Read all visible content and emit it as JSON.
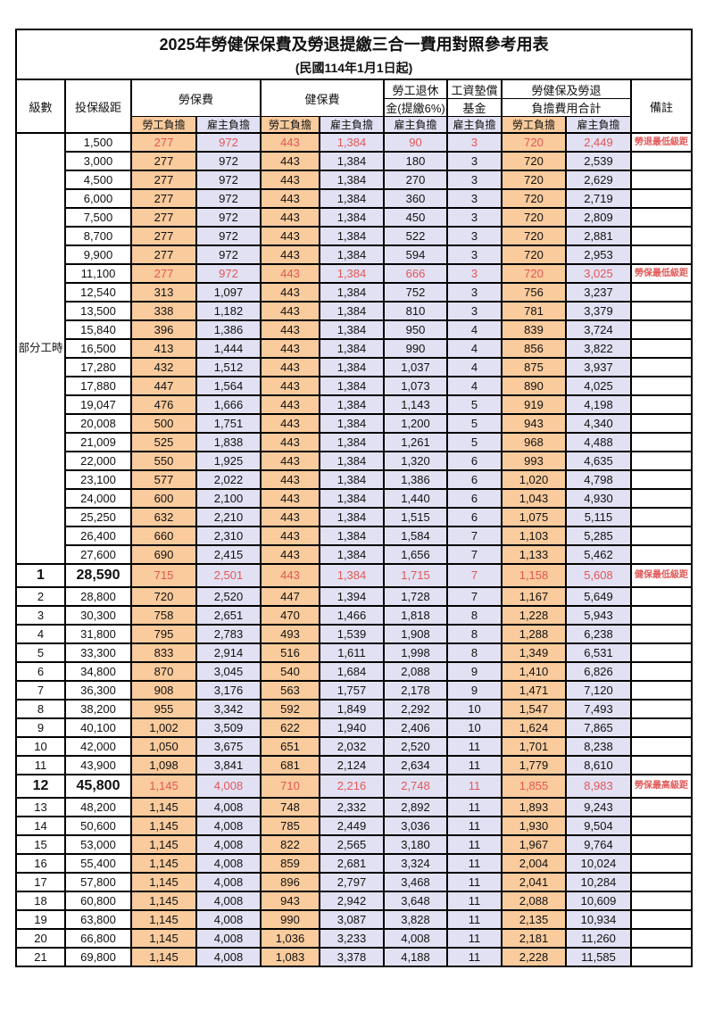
{
  "title": "2025年勞健保保費及勞退提繳三合一費用對照參考用表",
  "subtitle": "(民國114年1月1日起)",
  "header": {
    "level": "級數",
    "bracket": "投保級距",
    "labor": "勞保費",
    "health": "健保費",
    "pension1": "勞工退休",
    "pension2": "金(提繳6%)",
    "fund1": "工資墊償",
    "fund2": "基金",
    "total1": "勞健保及勞退",
    "total2": "負擔費用合計",
    "remark": "備註",
    "employee": "勞工負擔",
    "employer": "雇主負擔"
  },
  "part_time_label": "部分工時",
  "colors": {
    "employee_column": "#F9CB9D",
    "employer_column": "#E2E1F3",
    "highlight_text": "#E25757",
    "border": "#000000"
  },
  "rows": [
    {
      "lvl": null,
      "pt": 23,
      "b": "1,500",
      "v": [
        "277",
        "972",
        "443",
        "1,384",
        "90",
        "3",
        "720",
        "2,449"
      ],
      "rm": "勞退最低級距",
      "red": true
    },
    {
      "lvl": null,
      "b": "3,000",
      "v": [
        "277",
        "972",
        "443",
        "1,384",
        "180",
        "3",
        "720",
        "2,539"
      ]
    },
    {
      "lvl": null,
      "b": "4,500",
      "v": [
        "277",
        "972",
        "443",
        "1,384",
        "270",
        "3",
        "720",
        "2,629"
      ]
    },
    {
      "lvl": null,
      "b": "6,000",
      "v": [
        "277",
        "972",
        "443",
        "1,384",
        "360",
        "3",
        "720",
        "2,719"
      ]
    },
    {
      "lvl": null,
      "b": "7,500",
      "v": [
        "277",
        "972",
        "443",
        "1,384",
        "450",
        "3",
        "720",
        "2,809"
      ]
    },
    {
      "lvl": null,
      "b": "8,700",
      "v": [
        "277",
        "972",
        "443",
        "1,384",
        "522",
        "3",
        "720",
        "2,881"
      ]
    },
    {
      "lvl": null,
      "b": "9,900",
      "v": [
        "277",
        "972",
        "443",
        "1,384",
        "594",
        "3",
        "720",
        "2,953"
      ]
    },
    {
      "lvl": null,
      "b": "11,100",
      "v": [
        "277",
        "972",
        "443",
        "1,384",
        "666",
        "3",
        "720",
        "3,025"
      ],
      "rm": "勞保最低級距",
      "red": true
    },
    {
      "lvl": null,
      "b": "12,540",
      "v": [
        "313",
        "1,097",
        "443",
        "1,384",
        "752",
        "3",
        "756",
        "3,237"
      ]
    },
    {
      "lvl": null,
      "b": "13,500",
      "v": [
        "338",
        "1,182",
        "443",
        "1,384",
        "810",
        "3",
        "781",
        "3,379"
      ]
    },
    {
      "lvl": null,
      "b": "15,840",
      "v": [
        "396",
        "1,386",
        "443",
        "1,384",
        "950",
        "4",
        "839",
        "3,724"
      ]
    },
    {
      "lvl": null,
      "b": "16,500",
      "v": [
        "413",
        "1,444",
        "443",
        "1,384",
        "990",
        "4",
        "856",
        "3,822"
      ]
    },
    {
      "lvl": null,
      "b": "17,280",
      "v": [
        "432",
        "1,512",
        "443",
        "1,384",
        "1,037",
        "4",
        "875",
        "3,937"
      ]
    },
    {
      "lvl": null,
      "b": "17,880",
      "v": [
        "447",
        "1,564",
        "443",
        "1,384",
        "1,073",
        "4",
        "890",
        "4,025"
      ]
    },
    {
      "lvl": null,
      "b": "19,047",
      "v": [
        "476",
        "1,666",
        "443",
        "1,384",
        "1,143",
        "5",
        "919",
        "4,198"
      ]
    },
    {
      "lvl": null,
      "b": "20,008",
      "v": [
        "500",
        "1,751",
        "443",
        "1,384",
        "1,200",
        "5",
        "943",
        "4,340"
      ]
    },
    {
      "lvl": null,
      "b": "21,009",
      "v": [
        "525",
        "1,838",
        "443",
        "1,384",
        "1,261",
        "5",
        "968",
        "4,488"
      ]
    },
    {
      "lvl": null,
      "b": "22,000",
      "v": [
        "550",
        "1,925",
        "443",
        "1,384",
        "1,320",
        "6",
        "993",
        "4,635"
      ]
    },
    {
      "lvl": null,
      "b": "23,100",
      "v": [
        "577",
        "2,022",
        "443",
        "1,384",
        "1,386",
        "6",
        "1,020",
        "4,798"
      ]
    },
    {
      "lvl": null,
      "b": "24,000",
      "v": [
        "600",
        "2,100",
        "443",
        "1,384",
        "1,440",
        "6",
        "1,043",
        "4,930"
      ]
    },
    {
      "lvl": null,
      "b": "25,250",
      "v": [
        "632",
        "2,210",
        "443",
        "1,384",
        "1,515",
        "6",
        "1,075",
        "5,115"
      ]
    },
    {
      "lvl": null,
      "b": "26,400",
      "v": [
        "660",
        "2,310",
        "443",
        "1,384",
        "1,584",
        "7",
        "1,103",
        "5,285"
      ]
    },
    {
      "lvl": null,
      "b": "27,600",
      "v": [
        "690",
        "2,415",
        "443",
        "1,384",
        "1,656",
        "7",
        "1,133",
        "5,462"
      ]
    },
    {
      "lvl": "1",
      "b": "28,590",
      "v": [
        "715",
        "2,501",
        "443",
        "1,384",
        "1,715",
        "7",
        "1,158",
        "5,608"
      ],
      "rm": "健保最低級距",
      "red": true,
      "sp": true
    },
    {
      "lvl": "2",
      "b": "28,800",
      "v": [
        "720",
        "2,520",
        "447",
        "1,394",
        "1,728",
        "7",
        "1,167",
        "5,649"
      ]
    },
    {
      "lvl": "3",
      "b": "30,300",
      "v": [
        "758",
        "2,651",
        "470",
        "1,466",
        "1,818",
        "8",
        "1,228",
        "5,943"
      ]
    },
    {
      "lvl": "4",
      "b": "31,800",
      "v": [
        "795",
        "2,783",
        "493",
        "1,539",
        "1,908",
        "8",
        "1,288",
        "6,238"
      ]
    },
    {
      "lvl": "5",
      "b": "33,300",
      "v": [
        "833",
        "2,914",
        "516",
        "1,611",
        "1,998",
        "8",
        "1,349",
        "6,531"
      ]
    },
    {
      "lvl": "6",
      "b": "34,800",
      "v": [
        "870",
        "3,045",
        "540",
        "1,684",
        "2,088",
        "9",
        "1,410",
        "6,826"
      ]
    },
    {
      "lvl": "7",
      "b": "36,300",
      "v": [
        "908",
        "3,176",
        "563",
        "1,757",
        "2,178",
        "9",
        "1,471",
        "7,120"
      ]
    },
    {
      "lvl": "8",
      "b": "38,200",
      "v": [
        "955",
        "3,342",
        "592",
        "1,849",
        "2,292",
        "10",
        "1,547",
        "7,493"
      ]
    },
    {
      "lvl": "9",
      "b": "40,100",
      "v": [
        "1,002",
        "3,509",
        "622",
        "1,940",
        "2,406",
        "10",
        "1,624",
        "7,865"
      ]
    },
    {
      "lvl": "10",
      "b": "42,000",
      "v": [
        "1,050",
        "3,675",
        "651",
        "2,032",
        "2,520",
        "11",
        "1,701",
        "8,238"
      ]
    },
    {
      "lvl": "11",
      "b": "43,900",
      "v": [
        "1,098",
        "3,841",
        "681",
        "2,124",
        "2,634",
        "11",
        "1,779",
        "8,610"
      ]
    },
    {
      "lvl": "12",
      "b": "45,800",
      "v": [
        "1,145",
        "4,008",
        "710",
        "2,216",
        "2,748",
        "11",
        "1,855",
        "8,983"
      ],
      "rm": "勞保最高級距",
      "red": true,
      "sp": true
    },
    {
      "lvl": "13",
      "b": "48,200",
      "v": [
        "1,145",
        "4,008",
        "748",
        "2,332",
        "2,892",
        "11",
        "1,893",
        "9,243"
      ]
    },
    {
      "lvl": "14",
      "b": "50,600",
      "v": [
        "1,145",
        "4,008",
        "785",
        "2,449",
        "3,036",
        "11",
        "1,930",
        "9,504"
      ]
    },
    {
      "lvl": "15",
      "b": "53,000",
      "v": [
        "1,145",
        "4,008",
        "822",
        "2,565",
        "3,180",
        "11",
        "1,967",
        "9,764"
      ]
    },
    {
      "lvl": "16",
      "b": "55,400",
      "v": [
        "1,145",
        "4,008",
        "859",
        "2,681",
        "3,324",
        "11",
        "2,004",
        "10,024"
      ]
    },
    {
      "lvl": "17",
      "b": "57,800",
      "v": [
        "1,145",
        "4,008",
        "896",
        "2,797",
        "3,468",
        "11",
        "2,041",
        "10,284"
      ]
    },
    {
      "lvl": "18",
      "b": "60,800",
      "v": [
        "1,145",
        "4,008",
        "943",
        "2,942",
        "3,648",
        "11",
        "2,088",
        "10,609"
      ]
    },
    {
      "lvl": "19",
      "b": "63,800",
      "v": [
        "1,145",
        "4,008",
        "990",
        "3,087",
        "3,828",
        "11",
        "2,135",
        "10,934"
      ]
    },
    {
      "lvl": "20",
      "b": "66,800",
      "v": [
        "1,145",
        "4,008",
        "1,036",
        "3,233",
        "4,008",
        "11",
        "2,181",
        "11,260"
      ]
    },
    {
      "lvl": "21",
      "b": "69,800",
      "v": [
        "1,145",
        "4,008",
        "1,083",
        "3,378",
        "4,188",
        "11",
        "2,228",
        "11,585"
      ]
    }
  ]
}
